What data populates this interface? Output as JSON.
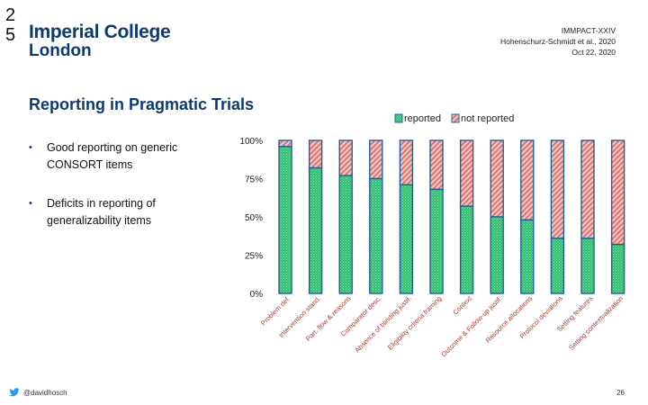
{
  "slide_number": "2\n5",
  "logo": {
    "line1": "Imperial College",
    "line2": "London"
  },
  "meta": {
    "line1": "IMMPACT-XXIV",
    "line2": "Hohenschurz-Schmidt et al., 2020",
    "line3": "Oct 22, 2020"
  },
  "title": "Reporting in Pragmatic Trials",
  "bullets": [
    {
      "marker": "•",
      "text": "Good reporting on generic CONSORT items"
    },
    {
      "marker": "•",
      "text": "Deficits in reporting of generalizability items"
    }
  ],
  "footer": {
    "twitter_handle": "@davidhosch",
    "page_number": "26"
  },
  "colors": {
    "brand": "#0b3b71",
    "reported": "#22b573",
    "not_reported": "#e89a9a",
    "bar_border": "#1f5f9e"
  },
  "chart_data": {
    "type": "bar",
    "stacked": true,
    "normalized": true,
    "title": "",
    "xlabel": "",
    "ylabel": "",
    "ylim": [
      0,
      100
    ],
    "yticks": [
      "0%",
      "25%",
      "50%",
      "75%",
      "100%"
    ],
    "legend_position": "top",
    "categories": [
      "Problem def.",
      "Intervention stand.",
      "Part. flow & reasons",
      "Comparator desc.",
      "Absence of blinding justif.",
      "Eligibility criteria framing",
      "Context",
      "Outcome & Follow-up justif.",
      "Resource allocations",
      "Protocol deviations",
      "Setting features",
      "Setting contextualization"
    ],
    "series": [
      {
        "name": "reported",
        "values": [
          96,
          82,
          77,
          75,
          71,
          68,
          57,
          50,
          48,
          36,
          36,
          32
        ]
      },
      {
        "name": "not reported",
        "values": [
          4,
          18,
          23,
          25,
          29,
          32,
          43,
          50,
          52,
          64,
          64,
          68
        ]
      }
    ]
  }
}
